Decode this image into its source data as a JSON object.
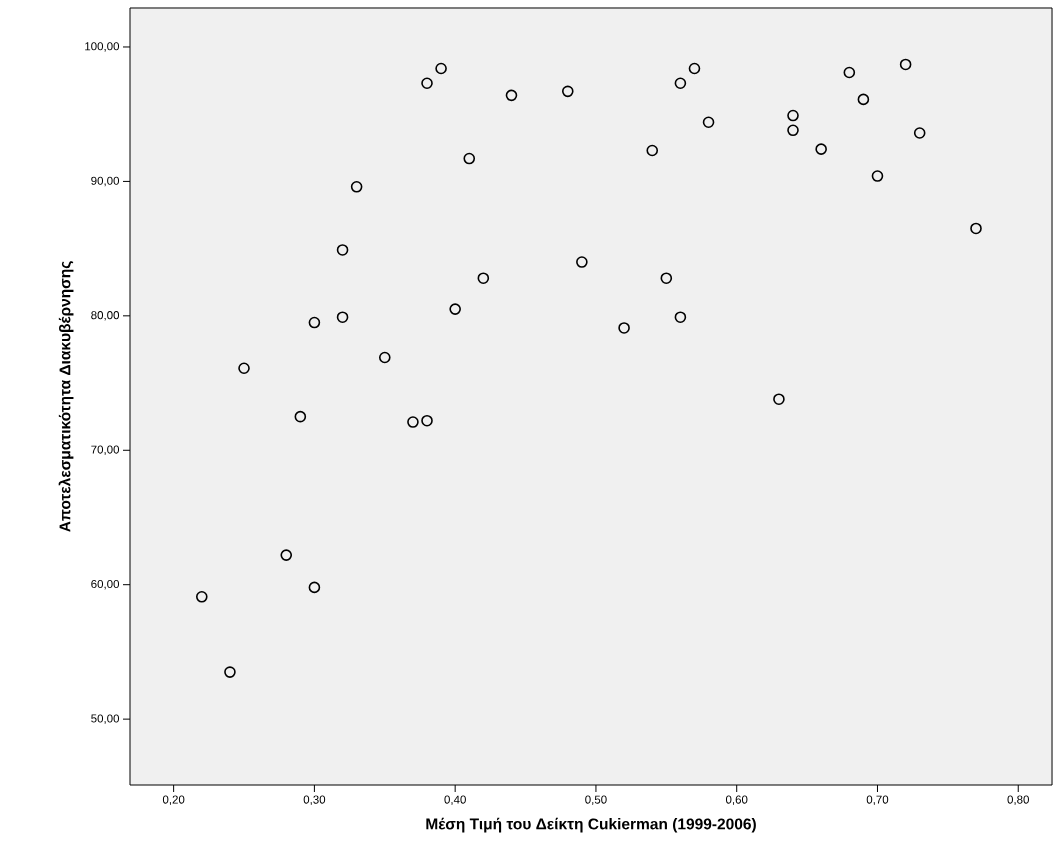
{
  "chart_data": {
    "type": "scatter",
    "xlabel": "Μέση Τιμή του Δείκτη Cukierman (1999-2006)",
    "ylabel": "Αποτελεσματικότητα Διακυβέρνησης",
    "marker": "circle",
    "grid": false,
    "xlim": [
      0.169,
      0.824
    ],
    "ylim": [
      45.1,
      102.9
    ],
    "xticks": [
      {
        "value": 0.2,
        "label": "0,20"
      },
      {
        "value": 0.3,
        "label": "0,30"
      },
      {
        "value": 0.4,
        "label": "0,40"
      },
      {
        "value": 0.5,
        "label": "0,50"
      },
      {
        "value": 0.6,
        "label": "0,60"
      },
      {
        "value": 0.7,
        "label": "0,70"
      },
      {
        "value": 0.8,
        "label": "0,80"
      }
    ],
    "yticks": [
      {
        "value": 50,
        "label": "50,00"
      },
      {
        "value": 60,
        "label": "60,00"
      },
      {
        "value": 70,
        "label": "70,00"
      },
      {
        "value": 80,
        "label": "80,00"
      },
      {
        "value": 90,
        "label": "90,00"
      },
      {
        "value": 100,
        "label": "100,00"
      }
    ],
    "series": [
      {
        "color": "#000000",
        "x": [
          0.22,
          0.24,
          0.25,
          0.28,
          0.29,
          0.3,
          0.3,
          0.32,
          0.32,
          0.33,
          0.35,
          0.37,
          0.38,
          0.38,
          0.39,
          0.4,
          0.41,
          0.42,
          0.44,
          0.48,
          0.49,
          0.52,
          0.54,
          0.55,
          0.56,
          0.56,
          0.57,
          0.58,
          0.63,
          0.64,
          0.64,
          0.66,
          0.68,
          0.69,
          0.7,
          0.72,
          0.73,
          0.77
        ],
        "values": [
          59.1,
          53.5,
          76.1,
          62.2,
          72.5,
          79.5,
          59.8,
          84.9,
          79.9,
          89.6,
          76.9,
          72.1,
          72.2,
          97.3,
          98.4,
          80.5,
          91.7,
          82.8,
          96.4,
          96.7,
          84.0,
          79.1,
          92.3,
          82.8,
          97.3,
          79.9,
          98.4,
          94.4,
          73.8,
          94.9,
          93.8,
          92.4,
          98.1,
          96.1,
          90.4,
          98.7,
          93.6,
          86.5
        ]
      }
    ]
  }
}
